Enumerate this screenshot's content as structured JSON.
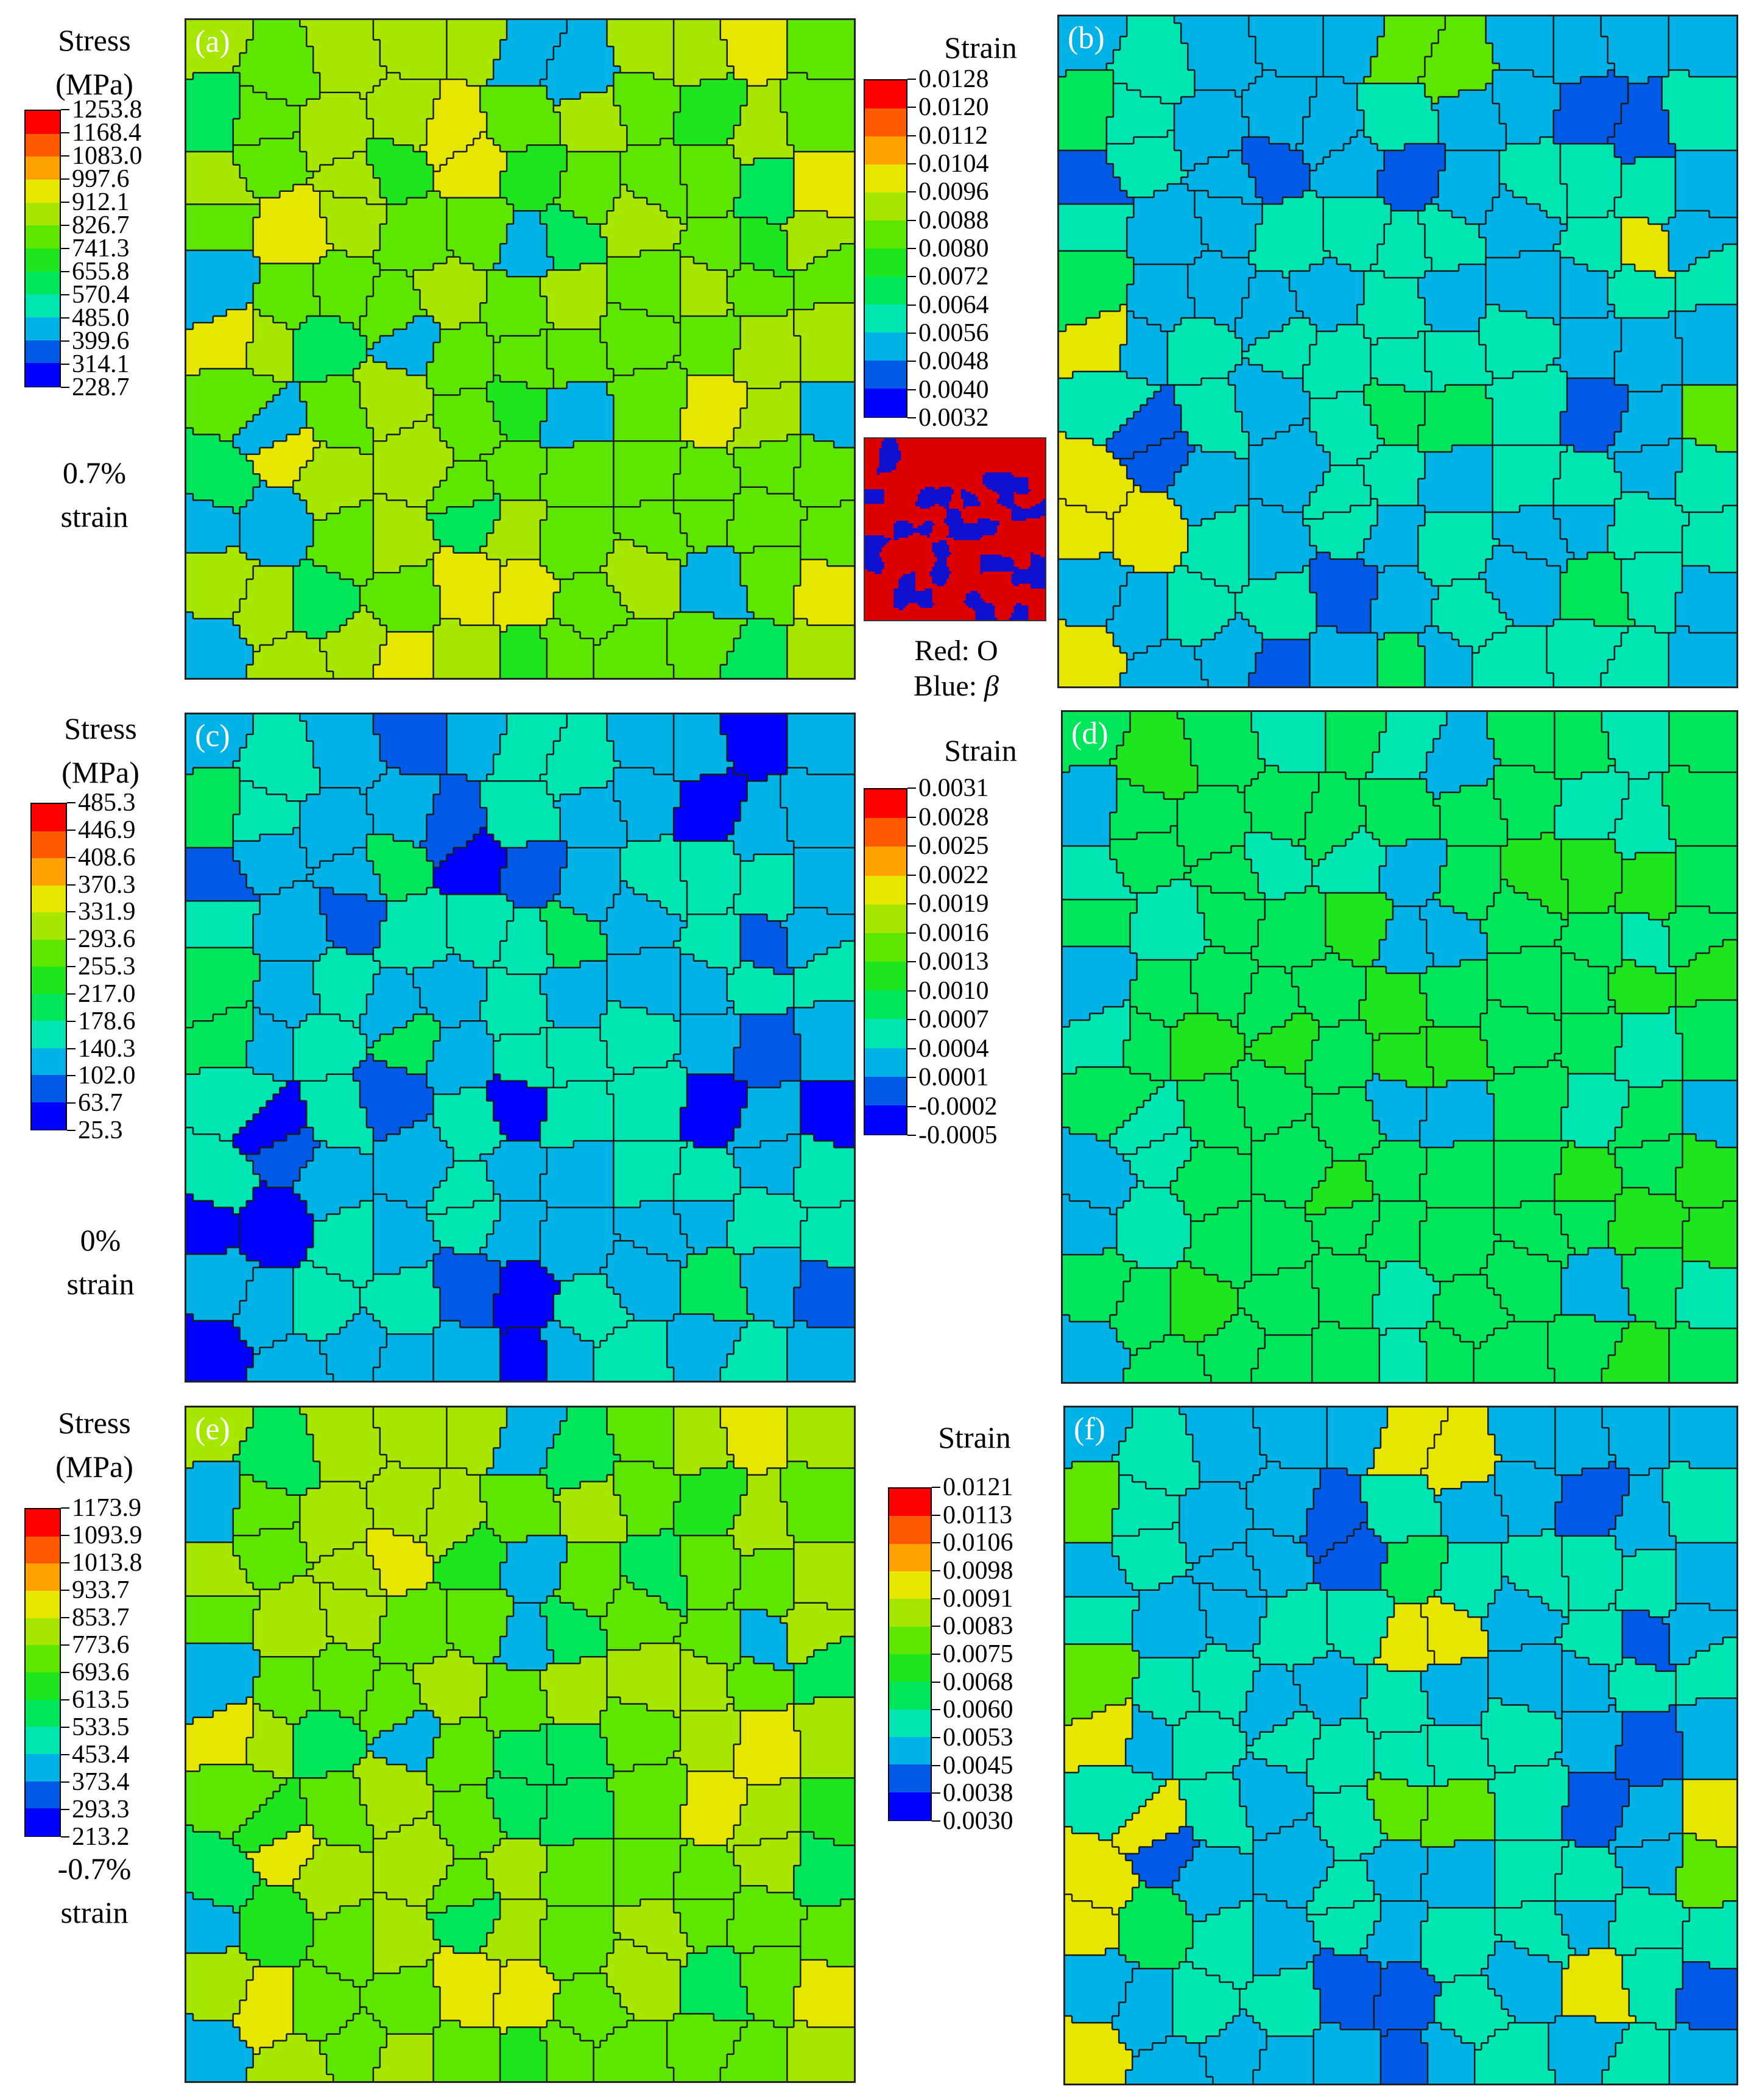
{
  "labels": {
    "stress_title": "Stress",
    "stress_unit": "(MPa)",
    "strain_title": "Strain",
    "key_red": "Red: O",
    "key_blue_prefix": "Blue:",
    "key_blue_symbol": "β"
  },
  "rows": [
    {
      "strain_value": "0.7%",
      "strain_word": "strain"
    },
    {
      "strain_value": "0%",
      "strain_word": "strain"
    },
    {
      "strain_value": "-0.7%",
      "strain_word": "strain"
    }
  ],
  "panels": [
    {
      "letter": "(a)",
      "variant": "stress"
    },
    {
      "letter": "(b)",
      "variant": "strain"
    },
    {
      "letter": "(c)",
      "variant": "stress-low"
    },
    {
      "letter": "(d)",
      "variant": "strain-low"
    },
    {
      "letter": "(e)",
      "variant": "stress"
    },
    {
      "letter": "(f)",
      "variant": "strain"
    }
  ],
  "legends": {
    "a": [
      "1253.8",
      "1168.4",
      "1083.0",
      "997.6",
      "912.1",
      "826.7",
      "741.3",
      "655.8",
      "570.4",
      "485.0",
      "399.6",
      "314.1",
      "228.7"
    ],
    "b": [
      "0.0128",
      "0.0120",
      "0.0112",
      "0.0104",
      "0.0096",
      "0.0088",
      "0.0080",
      "0.0072",
      "0.0064",
      "0.0056",
      "0.0048",
      "0.0040",
      "0.0032"
    ],
    "c": [
      "485.3",
      "446.9",
      "408.6",
      "370.3",
      "331.9",
      "293.6",
      "255.3",
      "217.0",
      "178.6",
      "140.3",
      "102.0",
      "63.7",
      "25.3"
    ],
    "d": [
      "0.0031",
      "0.0028",
      "0.0025",
      "0.0022",
      "0.0019",
      "0.0016",
      "0.0013",
      "0.0010",
      "0.0007",
      "0.0004",
      "0.0001",
      "-0.0002",
      "-0.0005"
    ],
    "e": [
      "1173.9",
      "1093.9",
      "1013.8",
      "933.7",
      "853.7",
      "773.6",
      "693.6",
      "613.5",
      "533.5",
      "453.4",
      "373.4",
      "293.3",
      "213.2"
    ],
    "f": [
      "0.0121",
      "0.0113",
      "0.0106",
      "0.0098",
      "0.0091",
      "0.0083",
      "0.0075",
      "0.0068",
      "0.0060",
      "0.0053",
      "0.0045",
      "0.0038",
      "0.0030"
    ]
  },
  "colors": {
    "scale": [
      "#ff0000",
      "#ff5a00",
      "#ffa200",
      "#e6e600",
      "#a6e600",
      "#5ce600",
      "#1ee61e",
      "#00e65a",
      "#00e6b2",
      "#00b2e6",
      "#005ae6",
      "#0000ff"
    ],
    "grain_boundary": "#1a1a1a",
    "phase_o": "#dd0000",
    "phase_beta": "#1010d0"
  }
}
